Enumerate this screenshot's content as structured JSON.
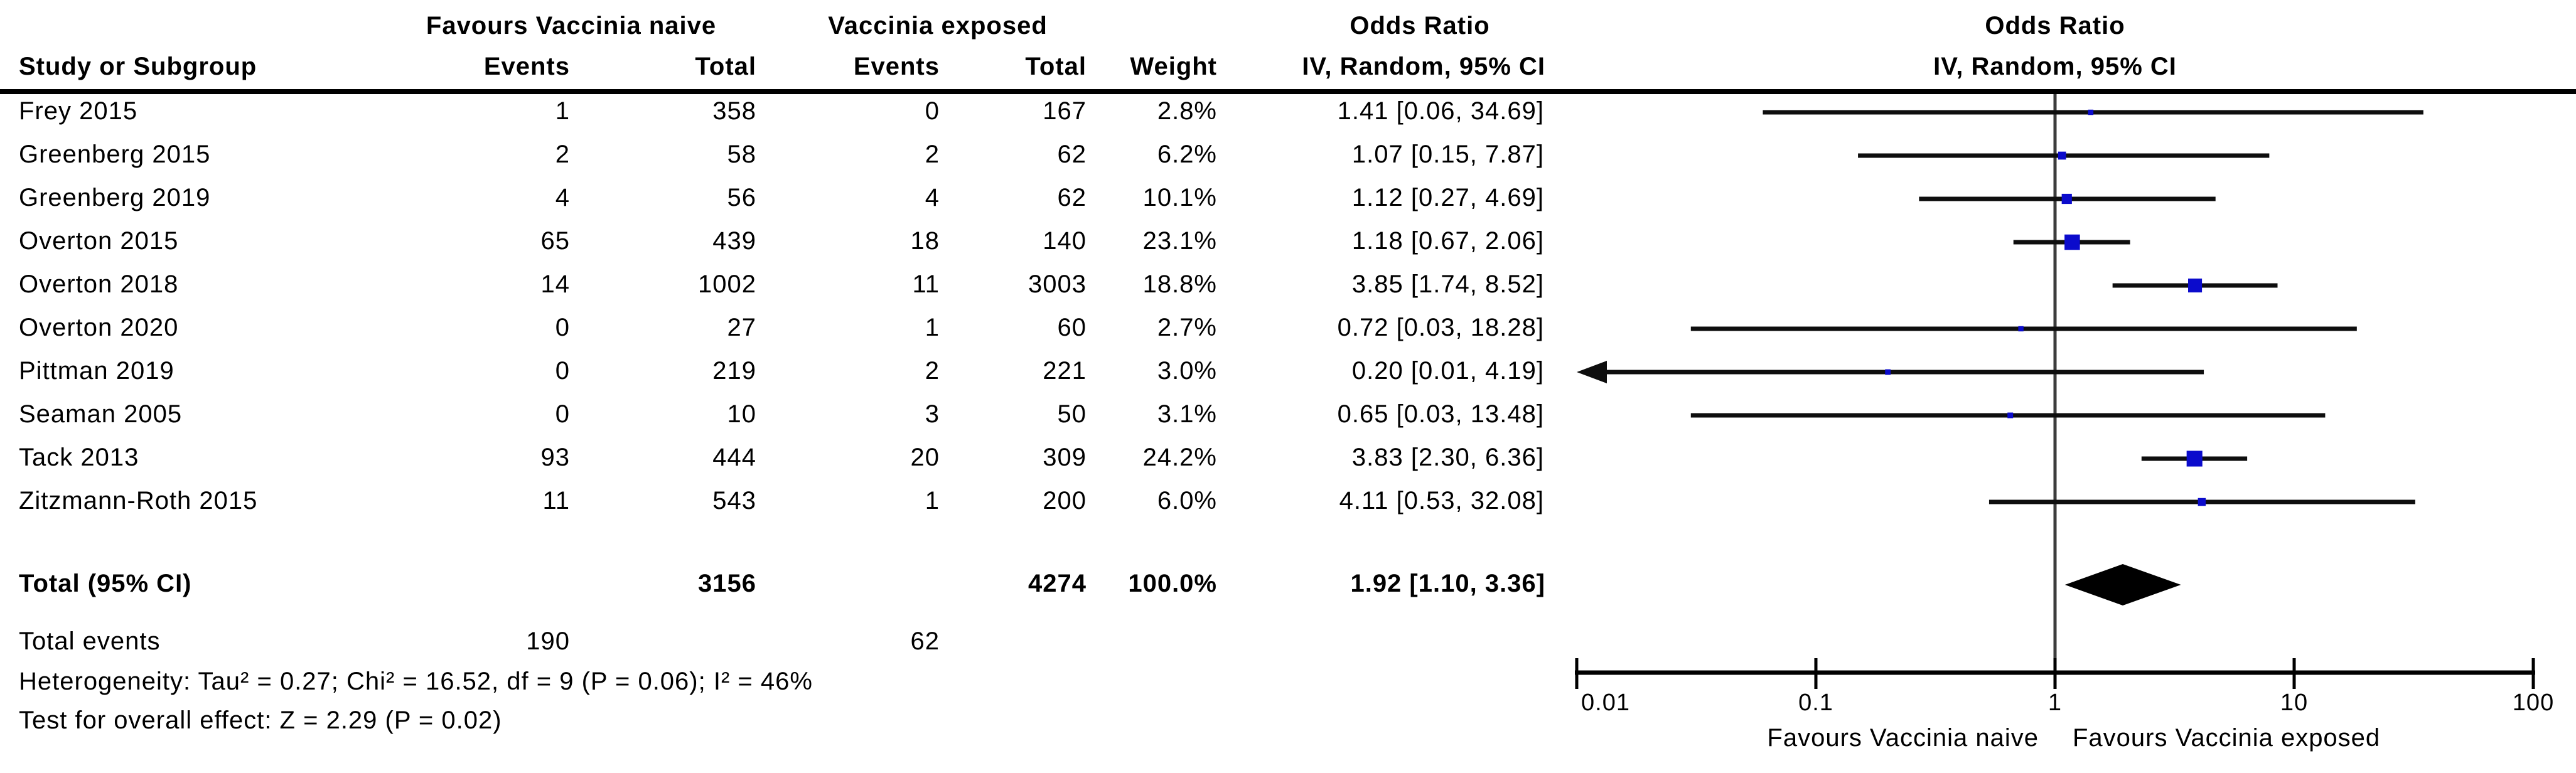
{
  "header": {
    "group1": "Favours Vaccinia naive",
    "group2": "Vaccinia exposed",
    "study_col": "Study or Subgroup",
    "events_col": "Events",
    "total_col": "Total",
    "weight_col": "Weight",
    "or_col_line1": "Odds Ratio",
    "or_col_line2": "IV, Random, 95% CI",
    "plot_col_line1": "Odds Ratio",
    "plot_col_line2": "IV, Random, 95% CI"
  },
  "chart_data": {
    "type": "forest",
    "effect_measure": "Odds Ratio",
    "model": "IV, Random, 95% CI",
    "x_scale": "log10",
    "x_range": [
      0.01,
      100
    ],
    "x_ticks": [
      "0.01",
      "0.1",
      "1",
      "10",
      "100"
    ],
    "studies": [
      {
        "study": "Frey 2015",
        "events1": "1",
        "total1": "358",
        "events2": "0",
        "total2": "167",
        "weight": "2.8%",
        "ci_text": "1.41 [0.06, 34.69]",
        "or": 1.41,
        "lo": 0.06,
        "hi": 34.69,
        "weight_pct": 2.8,
        "arrow_lo": false
      },
      {
        "study": "Greenberg 2015",
        "events1": "2",
        "total1": "58",
        "events2": "2",
        "total2": "62",
        "weight": "6.2%",
        "ci_text": "1.07 [0.15, 7.87]",
        "or": 1.07,
        "lo": 0.15,
        "hi": 7.87,
        "weight_pct": 6.2,
        "arrow_lo": false
      },
      {
        "study": "Greenberg 2019",
        "events1": "4",
        "total1": "56",
        "events2": "4",
        "total2": "62",
        "weight": "10.1%",
        "ci_text": "1.12 [0.27, 4.69]",
        "or": 1.12,
        "lo": 0.27,
        "hi": 4.69,
        "weight_pct": 10.1,
        "arrow_lo": false
      },
      {
        "study": "Overton 2015",
        "events1": "65",
        "total1": "439",
        "events2": "18",
        "total2": "140",
        "weight": "23.1%",
        "ci_text": "1.18 [0.67, 2.06]",
        "or": 1.18,
        "lo": 0.67,
        "hi": 2.06,
        "weight_pct": 23.1,
        "arrow_lo": false
      },
      {
        "study": "Overton 2018",
        "events1": "14",
        "total1": "1002",
        "events2": "11",
        "total2": "3003",
        "weight": "18.8%",
        "ci_text": "3.85 [1.74, 8.52]",
        "or": 3.85,
        "lo": 1.74,
        "hi": 8.52,
        "weight_pct": 18.8,
        "arrow_lo": false
      },
      {
        "study": "Overton 2020",
        "events1": "0",
        "total1": "27",
        "events2": "1",
        "total2": "60",
        "weight": "2.7%",
        "ci_text": "0.72 [0.03, 18.28]",
        "or": 0.72,
        "lo": 0.03,
        "hi": 18.28,
        "weight_pct": 2.7,
        "arrow_lo": false
      },
      {
        "study": "Pittman 2019",
        "events1": "0",
        "total1": "219",
        "events2": "2",
        "total2": "221",
        "weight": "3.0%",
        "ci_text": "0.20 [0.01, 4.19]",
        "or": 0.2,
        "lo": 0.01,
        "hi": 4.19,
        "weight_pct": 3.0,
        "arrow_lo": true
      },
      {
        "study": "Seaman 2005",
        "events1": "0",
        "total1": "10",
        "events2": "3",
        "total2": "50",
        "weight": "3.1%",
        "ci_text": "0.65 [0.03, 13.48]",
        "or": 0.65,
        "lo": 0.03,
        "hi": 13.48,
        "weight_pct": 3.1,
        "arrow_lo": false
      },
      {
        "study": "Tack 2013",
        "events1": "93",
        "total1": "444",
        "events2": "20",
        "total2": "309",
        "weight": "24.2%",
        "ci_text": "3.83 [2.30, 6.36]",
        "or": 3.83,
        "lo": 2.3,
        "hi": 6.36,
        "weight_pct": 24.2,
        "arrow_lo": false
      },
      {
        "study": "Zitzmann-Roth 2015",
        "events1": "11",
        "total1": "543",
        "events2": "1",
        "total2": "200",
        "weight": "6.0%",
        "ci_text": "4.11 [0.53, 32.08]",
        "or": 4.11,
        "lo": 0.53,
        "hi": 32.08,
        "weight_pct": 6.0,
        "arrow_lo": false
      }
    ],
    "total": {
      "label": "Total (95% CI)",
      "total1": "3156",
      "total2": "4274",
      "weight": "100.0%",
      "ci_text": "1.92 [1.10, 3.36]",
      "or": 1.92,
      "lo": 1.1,
      "hi": 3.36
    },
    "total_events": {
      "label": "Total events",
      "events1": "190",
      "events2": "62"
    },
    "axis_left_label": "Favours Vaccinia naive",
    "axis_right_label": "Favours Vaccinia exposed",
    "legend_position": "none",
    "grid": false
  },
  "footnotes": {
    "heterogeneity": "Heterogeneity: Tau² = 0.27; Chi² = 16.52, df = 9 (P = 0.06); I² = 46%",
    "overall_effect": "Test for overall effect: Z = 2.29 (P = 0.02)"
  },
  "colors": {
    "marker_blue": "#0b0bcc",
    "ci_line": "#0e0e0e",
    "diamond": "#000000",
    "axis": "#000000",
    "center_line": "#3c3c3c",
    "text": "#000000",
    "background": "#ffffff"
  }
}
